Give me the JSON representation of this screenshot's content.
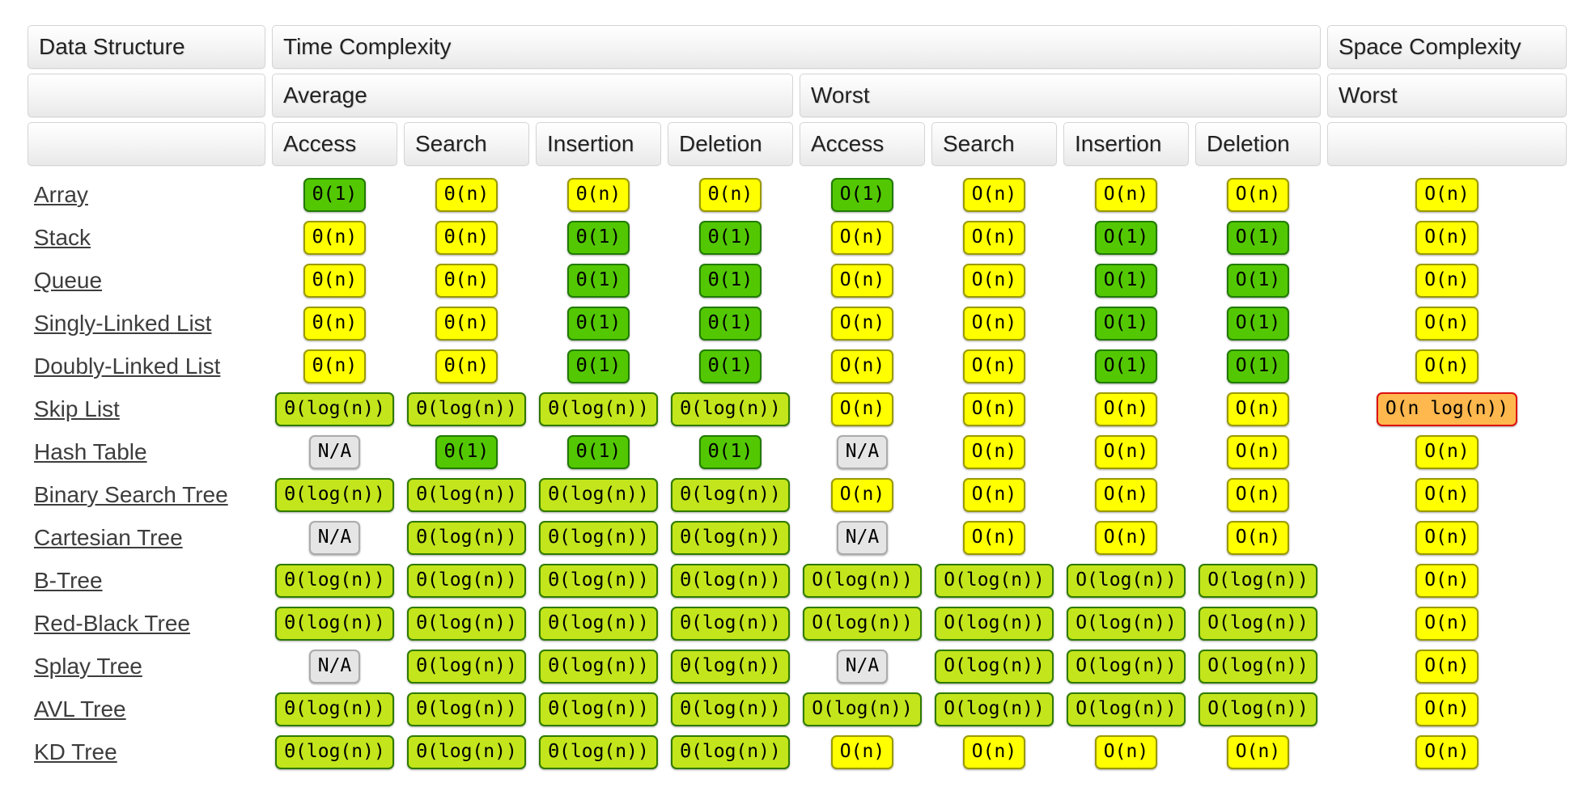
{
  "colors": {
    "green": "#53c802",
    "green-border": "#217a00",
    "yellow": "#ffff00",
    "yellow-border": "#9a9a00",
    "yellowgreen": "#c3e51c",
    "yellowgreen-border": "#2f7a00",
    "orange": "#ffb84d",
    "orange-border": "#dd1111",
    "gray": "#e5e5e5",
    "gray-border": "#ababab",
    "link": "#3d3d3d",
    "header-text": "#222222"
  },
  "table": {
    "headers": {
      "data_structure": "Data Structure",
      "time_complexity": "Time Complexity",
      "space_complexity": "Space Complexity",
      "average": "Average",
      "worst_time": "Worst",
      "worst_space": "Worst",
      "ops": [
        "Access",
        "Search",
        "Insertion",
        "Deletion",
        "Access",
        "Search",
        "Insertion",
        "Deletion"
      ]
    },
    "rows": [
      {
        "name": "Array",
        "avg": [
          {
            "t": "Θ(1)",
            "c": "green"
          },
          {
            "t": "Θ(n)",
            "c": "yellow"
          },
          {
            "t": "Θ(n)",
            "c": "yellow"
          },
          {
            "t": "Θ(n)",
            "c": "yellow"
          }
        ],
        "worst": [
          {
            "t": "O(1)",
            "c": "green"
          },
          {
            "t": "O(n)",
            "c": "yellow"
          },
          {
            "t": "O(n)",
            "c": "yellow"
          },
          {
            "t": "O(n)",
            "c": "yellow"
          }
        ],
        "space": {
          "t": "O(n)",
          "c": "yellow"
        }
      },
      {
        "name": "Stack",
        "avg": [
          {
            "t": "Θ(n)",
            "c": "yellow"
          },
          {
            "t": "Θ(n)",
            "c": "yellow"
          },
          {
            "t": "Θ(1)",
            "c": "green"
          },
          {
            "t": "Θ(1)",
            "c": "green"
          }
        ],
        "worst": [
          {
            "t": "O(n)",
            "c": "yellow"
          },
          {
            "t": "O(n)",
            "c": "yellow"
          },
          {
            "t": "O(1)",
            "c": "green"
          },
          {
            "t": "O(1)",
            "c": "green"
          }
        ],
        "space": {
          "t": "O(n)",
          "c": "yellow"
        }
      },
      {
        "name": "Queue",
        "avg": [
          {
            "t": "Θ(n)",
            "c": "yellow"
          },
          {
            "t": "Θ(n)",
            "c": "yellow"
          },
          {
            "t": "Θ(1)",
            "c": "green"
          },
          {
            "t": "Θ(1)",
            "c": "green"
          }
        ],
        "worst": [
          {
            "t": "O(n)",
            "c": "yellow"
          },
          {
            "t": "O(n)",
            "c": "yellow"
          },
          {
            "t": "O(1)",
            "c": "green"
          },
          {
            "t": "O(1)",
            "c": "green"
          }
        ],
        "space": {
          "t": "O(n)",
          "c": "yellow"
        }
      },
      {
        "name": "Singly-Linked List",
        "avg": [
          {
            "t": "Θ(n)",
            "c": "yellow"
          },
          {
            "t": "Θ(n)",
            "c": "yellow"
          },
          {
            "t": "Θ(1)",
            "c": "green"
          },
          {
            "t": "Θ(1)",
            "c": "green"
          }
        ],
        "worst": [
          {
            "t": "O(n)",
            "c": "yellow"
          },
          {
            "t": "O(n)",
            "c": "yellow"
          },
          {
            "t": "O(1)",
            "c": "green"
          },
          {
            "t": "O(1)",
            "c": "green"
          }
        ],
        "space": {
          "t": "O(n)",
          "c": "yellow"
        }
      },
      {
        "name": "Doubly-Linked List",
        "avg": [
          {
            "t": "Θ(n)",
            "c": "yellow"
          },
          {
            "t": "Θ(n)",
            "c": "yellow"
          },
          {
            "t": "Θ(1)",
            "c": "green"
          },
          {
            "t": "Θ(1)",
            "c": "green"
          }
        ],
        "worst": [
          {
            "t": "O(n)",
            "c": "yellow"
          },
          {
            "t": "O(n)",
            "c": "yellow"
          },
          {
            "t": "O(1)",
            "c": "green"
          },
          {
            "t": "O(1)",
            "c": "green"
          }
        ],
        "space": {
          "t": "O(n)",
          "c": "yellow"
        }
      },
      {
        "name": "Skip List",
        "avg": [
          {
            "t": "Θ(log(n))",
            "c": "yellowgreen"
          },
          {
            "t": "Θ(log(n))",
            "c": "yellowgreen"
          },
          {
            "t": "Θ(log(n))",
            "c": "yellowgreen"
          },
          {
            "t": "Θ(log(n))",
            "c": "yellowgreen"
          }
        ],
        "worst": [
          {
            "t": "O(n)",
            "c": "yellow"
          },
          {
            "t": "O(n)",
            "c": "yellow"
          },
          {
            "t": "O(n)",
            "c": "yellow"
          },
          {
            "t": "O(n)",
            "c": "yellow"
          }
        ],
        "space": {
          "t": "O(n log(n))",
          "c": "orange"
        }
      },
      {
        "name": "Hash Table",
        "avg": [
          {
            "t": "N/A",
            "c": "gray"
          },
          {
            "t": "Θ(1)",
            "c": "green"
          },
          {
            "t": "Θ(1)",
            "c": "green"
          },
          {
            "t": "Θ(1)",
            "c": "green"
          }
        ],
        "worst": [
          {
            "t": "N/A",
            "c": "gray"
          },
          {
            "t": "O(n)",
            "c": "yellow"
          },
          {
            "t": "O(n)",
            "c": "yellow"
          },
          {
            "t": "O(n)",
            "c": "yellow"
          }
        ],
        "space": {
          "t": "O(n)",
          "c": "yellow"
        }
      },
      {
        "name": "Binary Search Tree",
        "avg": [
          {
            "t": "Θ(log(n))",
            "c": "yellowgreen"
          },
          {
            "t": "Θ(log(n))",
            "c": "yellowgreen"
          },
          {
            "t": "Θ(log(n))",
            "c": "yellowgreen"
          },
          {
            "t": "Θ(log(n))",
            "c": "yellowgreen"
          }
        ],
        "worst": [
          {
            "t": "O(n)",
            "c": "yellow"
          },
          {
            "t": "O(n)",
            "c": "yellow"
          },
          {
            "t": "O(n)",
            "c": "yellow"
          },
          {
            "t": "O(n)",
            "c": "yellow"
          }
        ],
        "space": {
          "t": "O(n)",
          "c": "yellow"
        }
      },
      {
        "name": "Cartesian Tree",
        "avg": [
          {
            "t": "N/A",
            "c": "gray"
          },
          {
            "t": "Θ(log(n))",
            "c": "yellowgreen"
          },
          {
            "t": "Θ(log(n))",
            "c": "yellowgreen"
          },
          {
            "t": "Θ(log(n))",
            "c": "yellowgreen"
          }
        ],
        "worst": [
          {
            "t": "N/A",
            "c": "gray"
          },
          {
            "t": "O(n)",
            "c": "yellow"
          },
          {
            "t": "O(n)",
            "c": "yellow"
          },
          {
            "t": "O(n)",
            "c": "yellow"
          }
        ],
        "space": {
          "t": "O(n)",
          "c": "yellow"
        }
      },
      {
        "name": "B-Tree",
        "avg": [
          {
            "t": "Θ(log(n))",
            "c": "yellowgreen"
          },
          {
            "t": "Θ(log(n))",
            "c": "yellowgreen"
          },
          {
            "t": "Θ(log(n))",
            "c": "yellowgreen"
          },
          {
            "t": "Θ(log(n))",
            "c": "yellowgreen"
          }
        ],
        "worst": [
          {
            "t": "O(log(n))",
            "c": "yellowgreen"
          },
          {
            "t": "O(log(n))",
            "c": "yellowgreen"
          },
          {
            "t": "O(log(n))",
            "c": "yellowgreen"
          },
          {
            "t": "O(log(n))",
            "c": "yellowgreen"
          }
        ],
        "space": {
          "t": "O(n)",
          "c": "yellow"
        }
      },
      {
        "name": "Red-Black Tree",
        "avg": [
          {
            "t": "Θ(log(n))",
            "c": "yellowgreen"
          },
          {
            "t": "Θ(log(n))",
            "c": "yellowgreen"
          },
          {
            "t": "Θ(log(n))",
            "c": "yellowgreen"
          },
          {
            "t": "Θ(log(n))",
            "c": "yellowgreen"
          }
        ],
        "worst": [
          {
            "t": "O(log(n))",
            "c": "yellowgreen"
          },
          {
            "t": "O(log(n))",
            "c": "yellowgreen"
          },
          {
            "t": "O(log(n))",
            "c": "yellowgreen"
          },
          {
            "t": "O(log(n))",
            "c": "yellowgreen"
          }
        ],
        "space": {
          "t": "O(n)",
          "c": "yellow"
        }
      },
      {
        "name": "Splay Tree",
        "avg": [
          {
            "t": "N/A",
            "c": "gray"
          },
          {
            "t": "Θ(log(n))",
            "c": "yellowgreen"
          },
          {
            "t": "Θ(log(n))",
            "c": "yellowgreen"
          },
          {
            "t": "Θ(log(n))",
            "c": "yellowgreen"
          }
        ],
        "worst": [
          {
            "t": "N/A",
            "c": "gray"
          },
          {
            "t": "O(log(n))",
            "c": "yellowgreen"
          },
          {
            "t": "O(log(n))",
            "c": "yellowgreen"
          },
          {
            "t": "O(log(n))",
            "c": "yellowgreen"
          }
        ],
        "space": {
          "t": "O(n)",
          "c": "yellow"
        }
      },
      {
        "name": "AVL Tree",
        "avg": [
          {
            "t": "Θ(log(n))",
            "c": "yellowgreen"
          },
          {
            "t": "Θ(log(n))",
            "c": "yellowgreen"
          },
          {
            "t": "Θ(log(n))",
            "c": "yellowgreen"
          },
          {
            "t": "Θ(log(n))",
            "c": "yellowgreen"
          }
        ],
        "worst": [
          {
            "t": "O(log(n))",
            "c": "yellowgreen"
          },
          {
            "t": "O(log(n))",
            "c": "yellowgreen"
          },
          {
            "t": "O(log(n))",
            "c": "yellowgreen"
          },
          {
            "t": "O(log(n))",
            "c": "yellowgreen"
          }
        ],
        "space": {
          "t": "O(n)",
          "c": "yellow"
        }
      },
      {
        "name": "KD Tree",
        "avg": [
          {
            "t": "Θ(log(n))",
            "c": "yellowgreen"
          },
          {
            "t": "Θ(log(n))",
            "c": "yellowgreen"
          },
          {
            "t": "Θ(log(n))",
            "c": "yellowgreen"
          },
          {
            "t": "Θ(log(n))",
            "c": "yellowgreen"
          }
        ],
        "worst": [
          {
            "t": "O(n)",
            "c": "yellow"
          },
          {
            "t": "O(n)",
            "c": "yellow"
          },
          {
            "t": "O(n)",
            "c": "yellow"
          },
          {
            "t": "O(n)",
            "c": "yellow"
          }
        ],
        "space": {
          "t": "O(n)",
          "c": "yellow"
        }
      }
    ]
  }
}
